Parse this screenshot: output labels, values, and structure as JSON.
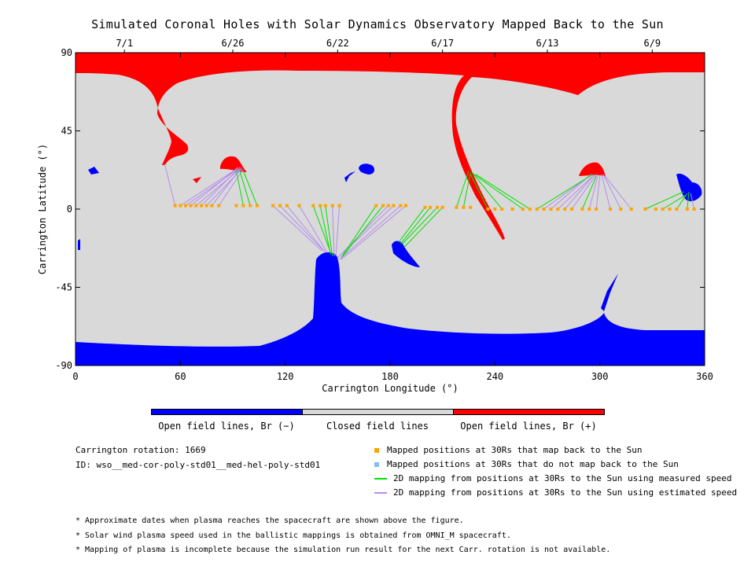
{
  "chart_data": {
    "type": "scatter",
    "title": "Simulated Coronal Holes with Solar Dynamics Observatory Mapped Back to the Sun",
    "xlabel": "Carrington Longitude (°)",
    "ylabel": "Carrington Latitude (°)",
    "xlim": [
      0,
      360
    ],
    "ylim": [
      -90,
      90
    ],
    "x_ticks": [
      "0",
      "60",
      "120",
      "180",
      "240",
      "300",
      "360"
    ],
    "y_ticks": [
      "90",
      "45",
      "0",
      "-45",
      "-90"
    ],
    "top_axis_dates": [
      {
        "label": "7/1",
        "lon": 28
      },
      {
        "label": "6/26",
        "lon": 90
      },
      {
        "label": "6/22",
        "lon": 150
      },
      {
        "label": "6/17",
        "lon": 210
      },
      {
        "label": "6/13",
        "lon": 270
      },
      {
        "label": "6/9",
        "lon": 330
      }
    ],
    "mapped_positions_30Rs": [
      {
        "lon": 57,
        "lat": 2
      },
      {
        "lon": 60,
        "lat": 2
      },
      {
        "lon": 63,
        "lat": 2
      },
      {
        "lon": 66,
        "lat": 2
      },
      {
        "lon": 69,
        "lat": 2
      },
      {
        "lon": 72,
        "lat": 2
      },
      {
        "lon": 75,
        "lat": 2
      },
      {
        "lon": 78,
        "lat": 2
      },
      {
        "lon": 82,
        "lat": 2
      },
      {
        "lon": 92,
        "lat": 2
      },
      {
        "lon": 96,
        "lat": 2
      },
      {
        "lon": 100,
        "lat": 2
      },
      {
        "lon": 104,
        "lat": 2
      },
      {
        "lon": 113,
        "lat": 2
      },
      {
        "lon": 117,
        "lat": 2
      },
      {
        "lon": 121,
        "lat": 2
      },
      {
        "lon": 128,
        "lat": 2
      },
      {
        "lon": 136,
        "lat": 2
      },
      {
        "lon": 140,
        "lat": 2
      },
      {
        "lon": 143,
        "lat": 2
      },
      {
        "lon": 147,
        "lat": 2
      },
      {
        "lon": 151,
        "lat": 2
      },
      {
        "lon": 172,
        "lat": 2
      },
      {
        "lon": 176,
        "lat": 2
      },
      {
        "lon": 179,
        "lat": 2
      },
      {
        "lon": 182,
        "lat": 2
      },
      {
        "lon": 186,
        "lat": 2
      },
      {
        "lon": 189,
        "lat": 2
      },
      {
        "lon": 200,
        "lat": 1
      },
      {
        "lon": 203,
        "lat": 1
      },
      {
        "lon": 207,
        "lat": 1
      },
      {
        "lon": 210,
        "lat": 1
      },
      {
        "lon": 218,
        "lat": 1
      },
      {
        "lon": 222,
        "lat": 1
      },
      {
        "lon": 226,
        "lat": 1
      },
      {
        "lon": 236,
        "lat": 0
      },
      {
        "lon": 240,
        "lat": 0
      },
      {
        "lon": 244,
        "lat": 0
      },
      {
        "lon": 250,
        "lat": 0
      },
      {
        "lon": 256,
        "lat": 0
      },
      {
        "lon": 260,
        "lat": 0
      },
      {
        "lon": 264,
        "lat": 0
      },
      {
        "lon": 268,
        "lat": 0
      },
      {
        "lon": 272,
        "lat": 0
      },
      {
        "lon": 276,
        "lat": 0
      },
      {
        "lon": 280,
        "lat": 0
      },
      {
        "lon": 284,
        "lat": 0
      },
      {
        "lon": 290,
        "lat": 0
      },
      {
        "lon": 294,
        "lat": 0
      },
      {
        "lon": 298,
        "lat": 0
      },
      {
        "lon": 306,
        "lat": 0
      },
      {
        "lon": 312,
        "lat": 0
      },
      {
        "lon": 318,
        "lat": 0
      },
      {
        "lon": 326,
        "lat": 0
      },
      {
        "lon": 332,
        "lat": 0
      },
      {
        "lon": 336,
        "lat": 0
      },
      {
        "lon": 340,
        "lat": 0
      },
      {
        "lon": 344,
        "lat": 0
      },
      {
        "lon": 350,
        "lat": 0
      },
      {
        "lon": 354,
        "lat": 0
      }
    ],
    "mapping_lines_measured_speed": [
      {
        "from": [
          96,
          2
        ],
        "to": [
          92,
          22
        ]
      },
      {
        "from": [
          100,
          2
        ],
        "to": [
          94,
          22
        ]
      },
      {
        "from": [
          104,
          2
        ],
        "to": [
          96,
          22
        ]
      },
      {
        "from": [
          136,
          2
        ],
        "to": [
          146,
          -25
        ]
      },
      {
        "from": [
          140,
          2
        ],
        "to": [
          146,
          -26
        ]
      },
      {
        "from": [
          143,
          2
        ],
        "to": [
          147,
          -27
        ]
      },
      {
        "from": [
          172,
          2
        ],
        "to": [
          152,
          -28
        ]
      },
      {
        "from": [
          176,
          2
        ],
        "to": [
          153,
          -27
        ]
      },
      {
        "from": [
          200,
          1
        ],
        "to": [
          185,
          -19
        ]
      },
      {
        "from": [
          203,
          1
        ],
        "to": [
          186,
          -20
        ]
      },
      {
        "from": [
          207,
          1
        ],
        "to": [
          187,
          -20
        ]
      },
      {
        "from": [
          210,
          1
        ],
        "to": [
          188,
          -22
        ]
      },
      {
        "from": [
          218,
          1
        ],
        "to": [
          225,
          22
        ]
      },
      {
        "from": [
          222,
          1
        ],
        "to": [
          226,
          21
        ]
      },
      {
        "from": [
          236,
          0
        ],
        "to": [
          226,
          20
        ]
      },
      {
        "from": [
          244,
          0
        ],
        "to": [
          227,
          21
        ]
      },
      {
        "from": [
          256,
          0
        ],
        "to": [
          228,
          20
        ]
      },
      {
        "from": [
          260,
          0
        ],
        "to": [
          229,
          20
        ]
      },
      {
        "from": [
          264,
          0
        ],
        "to": [
          296,
          20
        ]
      },
      {
        "from": [
          290,
          0
        ],
        "to": [
          298,
          19
        ]
      },
      {
        "from": [
          326,
          0
        ],
        "to": [
          348,
          10
        ]
      },
      {
        "from": [
          336,
          0
        ],
        "to": [
          349,
          8
        ]
      },
      {
        "from": [
          344,
          0
        ],
        "to": [
          350,
          9
        ]
      },
      {
        "from": [
          350,
          0
        ],
        "to": [
          351,
          10
        ]
      }
    ],
    "mapping_lines_estimated_speed": [
      {
        "from": [
          57,
          2
        ],
        "to": [
          51,
          26
        ]
      },
      {
        "from": [
          60,
          2
        ],
        "to": [
          92,
          23
        ]
      },
      {
        "from": [
          63,
          2
        ],
        "to": [
          93,
          23
        ]
      },
      {
        "from": [
          66,
          2
        ],
        "to": [
          93,
          24
        ]
      },
      {
        "from": [
          69,
          2
        ],
        "to": [
          94,
          23
        ]
      },
      {
        "from": [
          72,
          2
        ],
        "to": [
          94,
          24
        ]
      },
      {
        "from": [
          75,
          2
        ],
        "to": [
          95,
          23
        ]
      },
      {
        "from": [
          78,
          2
        ],
        "to": [
          95,
          24
        ]
      },
      {
        "from": [
          82,
          2
        ],
        "to": [
          96,
          23
        ]
      },
      {
        "from": [
          113,
          2
        ],
        "to": [
          141,
          -24
        ]
      },
      {
        "from": [
          117,
          2
        ],
        "to": [
          142,
          -24
        ]
      },
      {
        "from": [
          121,
          2
        ],
        "to": [
          143,
          -25
        ]
      },
      {
        "from": [
          128,
          2
        ],
        "to": [
          144,
          -25
        ]
      },
      {
        "from": [
          147,
          2
        ],
        "to": [
          148,
          -27
        ]
      },
      {
        "from": [
          151,
          2
        ],
        "to": [
          149,
          -27
        ]
      },
      {
        "from": [
          179,
          2
        ],
        "to": [
          150,
          -28
        ]
      },
      {
        "from": [
          182,
          2
        ],
        "to": [
          150,
          -28
        ]
      },
      {
        "from": [
          186,
          2
        ],
        "to": [
          151,
          -29
        ]
      },
      {
        "from": [
          189,
          2
        ],
        "to": [
          152,
          -29
        ]
      },
      {
        "from": [
          268,
          0
        ],
        "to": [
          294,
          19
        ]
      },
      {
        "from": [
          272,
          0
        ],
        "to": [
          295,
          20
        ]
      },
      {
        "from": [
          276,
          0
        ],
        "to": [
          296,
          19
        ]
      },
      {
        "from": [
          280,
          0
        ],
        "to": [
          297,
          20
        ]
      },
      {
        "from": [
          284,
          0
        ],
        "to": [
          298,
          20
        ]
      },
      {
        "from": [
          294,
          0
        ],
        "to": [
          299,
          20
        ]
      },
      {
        "from": [
          298,
          0
        ],
        "to": [
          300,
          19
        ]
      },
      {
        "from": [
          306,
          0
        ],
        "to": [
          301,
          20
        ]
      },
      {
        "from": [
          312,
          0
        ],
        "to": [
          302,
          20
        ]
      },
      {
        "from": [
          318,
          0
        ],
        "to": [
          303,
          19
        ]
      },
      {
        "from": [
          354,
          0
        ],
        "to": [
          352,
          9
        ]
      }
    ],
    "colors": {
      "open_negative": "#0000ff",
      "closed": "#d9d9d9",
      "open_positive": "#ff0000",
      "mapped_point": "#ffa500",
      "unmapped_point": "#7ec0ee",
      "measured_line": "#00e000",
      "estimated_line": "#b58cf0"
    }
  },
  "colorbar": {
    "labels": [
      "Open field lines, Br (−)",
      "Closed field lines",
      "Open field lines, Br (+)"
    ]
  },
  "info": {
    "rotation": "Carrington rotation: 1669",
    "id": "ID: wso__med-cor-poly-std01__med-hel-poly-std01"
  },
  "legend": {
    "mapped": "Mapped positions at 30Rs that map back to the Sun",
    "not_mapped": "Mapped positions at 30Rs that do not map back to the Sun",
    "measured": "2D mapping from positions at 30Rs to the Sun using measured speed",
    "estimated": "2D mapping from positions at 30Rs to the Sun using estimated speed"
  },
  "notes": [
    "* Approximate dates when plasma reaches the spacecraft are shown above the figure.",
    "* Solar wind plasma speed used in the ballistic mappings is obtained from OMNI_M spacecraft.",
    "* Mapping of plasma is incomplete because the simulation run result for the next Carr. rotation is not available."
  ]
}
